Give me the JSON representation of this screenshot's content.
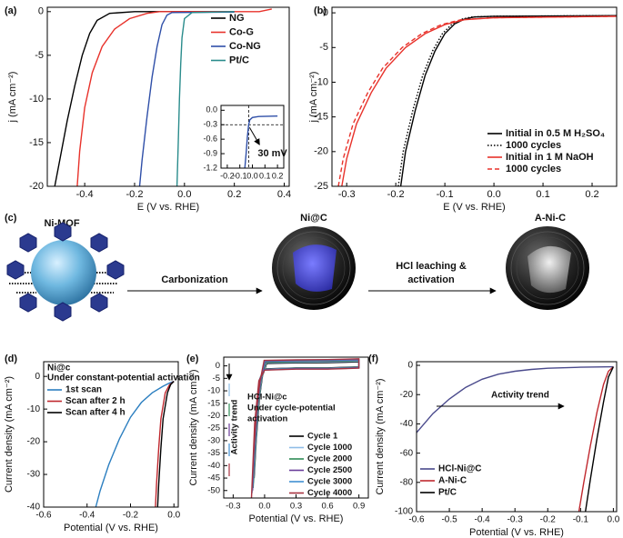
{
  "chart_data": [
    {
      "type": "line",
      "label": "(a)",
      "x_label": "E (V vs. RHE)",
      "y_label": "j (mA cm⁻²)",
      "xlim": [
        -0.55,
        0.42
      ],
      "ylim": [
        -20,
        0.5
      ],
      "xticks": [
        -0.4,
        -0.2,
        {
          "value": 0,
          "label": "0.0"
        },
        0.2,
        0.4
      ],
      "yticks": [
        0,
        -5,
        -10,
        -15,
        -20
      ],
      "series": [
        {
          "name": "NG",
          "color": "#000000",
          "x": [
            -0.52,
            -0.5,
            -0.47,
            -0.44,
            -0.41,
            -0.38,
            -0.35,
            -0.3,
            -0.2,
            0.2
          ],
          "values": [
            -20,
            -17,
            -12.5,
            -8.5,
            -5,
            -2.5,
            -1,
            -0.2,
            0,
            0
          ]
        },
        {
          "name": "Co-G",
          "color": "#e8322b",
          "x": [
            -0.43,
            -0.42,
            -0.4,
            -0.37,
            -0.33,
            -0.28,
            -0.22,
            -0.15,
            -0.1,
            0.3,
            0.35
          ],
          "values": [
            -20,
            -16,
            -11,
            -7,
            -4,
            -2,
            -0.8,
            -0.2,
            0,
            0,
            0.3
          ]
        },
        {
          "name": "Co-NG",
          "color": "#2f4fa8",
          "x": [
            -0.18,
            -0.17,
            -0.15,
            -0.13,
            -0.11,
            -0.09,
            -0.07,
            -0.05,
            0.2
          ],
          "values": [
            -20,
            -17,
            -12,
            -7.5,
            -4,
            -1.5,
            -0.4,
            -0.1,
            -0.05
          ]
        },
        {
          "name": "Pt/C",
          "color": "#2a8c8c",
          "x": [
            -0.03,
            -0.025,
            -0.02,
            -0.015,
            -0.01,
            0,
            0.03,
            0.2
          ],
          "values": [
            -20,
            -15,
            -10,
            -6,
            -3,
            -0.8,
            -0.1,
            0
          ]
        }
      ]
    },
    {
      "type": "line",
      "inset": true,
      "xlim": [
        -0.25,
        0.25
      ],
      "ylim": [
        -1.2,
        0.1
      ],
      "xticks": [
        -0.2,
        -0.1,
        {
          "value": 0,
          "label": "0.0"
        },
        0.1,
        0.2
      ],
      "yticks": [
        {
          "value": 0,
          "label": "0.0"
        },
        -0.3,
        -0.6,
        -0.9,
        -1.2
      ],
      "reference_lines": {
        "x": -0.03,
        "y": -0.3
      },
      "annotations": [
        "30 mV"
      ],
      "series": [
        {
          "color": "#2f4fa8",
          "x": [
            -0.06,
            -0.05,
            -0.04,
            -0.03,
            -0.02,
            0,
            0.05,
            0.2
          ],
          "values": [
            -1.2,
            -0.9,
            -0.55,
            -0.3,
            -0.2,
            -0.15,
            -0.13,
            -0.12
          ]
        }
      ]
    },
    {
      "type": "line",
      "label": "(b)",
      "x_label": "E (V vs. RHE)",
      "y_label": "j (mA cm⁻²)",
      "xlim": [
        -0.33,
        0.25
      ],
      "ylim": [
        -25,
        0.8
      ],
      "xticks": [
        -0.3,
        -0.2,
        -0.1,
        {
          "value": 0,
          "label": "0.0"
        },
        0.1,
        0.2
      ],
      "yticks": [
        0,
        -5,
        -10,
        -15,
        -20,
        -25
      ],
      "series": [
        {
          "name": "Initial in 0.5 M H₂SO₄",
          "color": "#000000",
          "x": [
            -0.19,
            -0.18,
            -0.16,
            -0.14,
            -0.12,
            -0.1,
            -0.08,
            -0.06,
            -0.04,
            0,
            0.25
          ],
          "values": [
            -25,
            -20,
            -14,
            -9,
            -5.5,
            -3,
            -1.6,
            -0.9,
            -0.6,
            -0.5,
            -0.4
          ]
        },
        {
          "name": "1000 cycles",
          "color": "#000000",
          "dash": "dotted",
          "x": [
            -0.195,
            -0.185,
            -0.165,
            -0.145,
            -0.125,
            -0.105,
            -0.085,
            -0.065,
            -0.045,
            0,
            0.25
          ],
          "values": [
            -25,
            -20,
            -14,
            -9,
            -5.5,
            -3,
            -1.6,
            -0.9,
            -0.6,
            -0.5,
            -0.4
          ]
        },
        {
          "name": "Initial in 1 M NaOH",
          "color": "#e8322b",
          "x": [
            -0.31,
            -0.3,
            -0.28,
            -0.25,
            -0.22,
            -0.18,
            -0.14,
            -0.1,
            -0.06,
            0,
            0.25
          ],
          "values": [
            -25,
            -21,
            -16,
            -11.5,
            -8,
            -5,
            -3,
            -1.7,
            -1,
            -0.7,
            -0.5
          ]
        },
        {
          "name": "1000 cycles",
          "color": "#e8322b",
          "dash": "dashed",
          "x": [
            -0.317,
            -0.307,
            -0.287,
            -0.257,
            -0.227,
            -0.187,
            -0.147,
            -0.107,
            -0.067,
            0,
            0.25
          ],
          "values": [
            -25,
            -21,
            -16,
            -11.5,
            -8,
            -5,
            -3,
            -1.7,
            -1,
            -0.7,
            -0.5
          ]
        }
      ]
    },
    {
      "type": "line",
      "label": "(d)",
      "x_label": "Potential (V vs. RHE)",
      "y_label": "Current density (mA cm⁻²)",
      "xlim": [
        -0.6,
        0.02
      ],
      "ylim": [
        -40,
        4.5
      ],
      "xticks": [
        -0.6,
        -0.4,
        -0.2,
        {
          "value": 0,
          "label": "0.0"
        }
      ],
      "yticks": [
        0,
        -10,
        -20,
        -30,
        -40
      ],
      "annotations": [
        "Ni@c",
        "Under constant-potential activation"
      ],
      "series": [
        {
          "name": "1st scan",
          "color": "#2c7fc0",
          "x": [
            -0.36,
            -0.34,
            -0.3,
            -0.25,
            -0.2,
            -0.15,
            -0.1,
            -0.05,
            -0.02,
            0
          ],
          "values": [
            -40,
            -35,
            -27,
            -19,
            -12.5,
            -8,
            -5,
            -3,
            -2,
            -1.5
          ]
        },
        {
          "name": "Scan after 2 h",
          "color": "#c0282e",
          "x": [
            -0.085,
            -0.08,
            -0.07,
            -0.06,
            -0.04,
            -0.02,
            0
          ],
          "values": [
            -40,
            -33,
            -22,
            -13,
            -5,
            -2.5,
            -1.5
          ]
        },
        {
          "name": "Scan after 4 h",
          "color": "#000000",
          "x": [
            -0.075,
            -0.07,
            -0.06,
            -0.05,
            -0.03,
            -0.015,
            0
          ],
          "values": [
            -40,
            -33,
            -22,
            -13,
            -5,
            -2.5,
            -1.5
          ]
        }
      ]
    },
    {
      "type": "line",
      "label": "(e)",
      "x_label": "Potential (V vs. RHE)",
      "y_label": "Current density (mA cm⁻²)",
      "xlim": [
        -0.39,
        0.99
      ],
      "ylim": [
        -53,
        3.5
      ],
      "xticks": [
        -0.3,
        {
          "value": 0,
          "label": "0.0"
        },
        0.3,
        0.6,
        0.9
      ],
      "yticks": [
        0,
        -5,
        -10,
        -15,
        -20,
        -25,
        -30,
        -35,
        -40,
        -45,
        -50
      ],
      "annotations": [
        "HCl-Ni@c",
        "Under cycle-potential",
        "activation",
        "Activity trend"
      ],
      "series": [
        {
          "name": "Cycle 1",
          "color": "#000000",
          "x": [
            -0.1,
            -0.08,
            -0.05,
            -0.02,
            0.02,
            0.3,
            0.6,
            0.9,
            0.9,
            0.6,
            0.3,
            0,
            -0.03,
            -0.07,
            -0.1
          ],
          "values": [
            -45,
            -30,
            -13,
            -4,
            1,
            1.2,
            1.3,
            1.6,
            -0.4,
            -0.8,
            -0.8,
            -1.2,
            -3.5,
            -18,
            -45
          ]
        },
        {
          "name": "Cycle 1000",
          "color": "#8fbde6",
          "x": [
            -0.105,
            -0.085,
            -0.055,
            -0.025,
            0.015,
            0.3,
            0.6,
            0.9,
            0.9,
            0.6,
            0.3,
            0,
            -0.035,
            -0.075,
            -0.105
          ],
          "values": [
            -47,
            -32,
            -14,
            -4.5,
            1.3,
            1.5,
            1.6,
            1.9,
            -0.5,
            -0.9,
            -0.9,
            -1.3,
            -4,
            -19,
            -47
          ]
        },
        {
          "name": "Cycle 2000",
          "color": "#2e8b57",
          "x": [
            -0.11,
            -0.09,
            -0.06,
            -0.03,
            0.01,
            0.3,
            0.6,
            0.9,
            0.9,
            0.6,
            0.3,
            0,
            -0.04,
            -0.08,
            -0.11
          ],
          "values": [
            -49,
            -33,
            -15,
            -5,
            1.5,
            1.8,
            1.9,
            2.2,
            -0.6,
            -1,
            -1,
            -1.4,
            -4.5,
            -20,
            -49
          ]
        },
        {
          "name": "Cycle 2500",
          "color": "#6a3d9a",
          "x": [
            -0.115,
            -0.095,
            -0.065,
            -0.035,
            0.005,
            0.3,
            0.6,
            0.9,
            0.9,
            0.6,
            0.3,
            0,
            -0.045,
            -0.085,
            -0.115
          ],
          "values": [
            -50,
            -34,
            -15.5,
            -5.5,
            1.8,
            2,
            2.1,
            2.4,
            -0.7,
            -1.1,
            -1.1,
            -1.5,
            -5,
            -21,
            -50
          ]
        },
        {
          "name": "Cycle 3000",
          "color": "#3f8fd2",
          "x": [
            -0.12,
            -0.1,
            -0.07,
            -0.04,
            0,
            0.3,
            0.6,
            0.9,
            0.9,
            0.6,
            0.3,
            0,
            -0.05,
            -0.09,
            -0.12
          ],
          "values": [
            -51,
            -35,
            -16,
            -6,
            2,
            2.2,
            2.3,
            2.6,
            -0.8,
            -1.2,
            -1.2,
            -1.6,
            -5.5,
            -22,
            -51
          ]
        },
        {
          "name": "Cycle 4000",
          "color": "#a83240",
          "x": [
            -0.125,
            -0.105,
            -0.075,
            -0.045,
            -0.005,
            0.3,
            0.6,
            0.9,
            0.9,
            0.6,
            0.3,
            0,
            -0.055,
            -0.095,
            -0.125
          ],
          "values": [
            -53,
            -36,
            -17,
            -6.5,
            2.2,
            2.4,
            2.5,
            2.8,
            -0.9,
            -1.3,
            -1.3,
            -1.7,
            -6,
            -23,
            -53
          ]
        }
      ]
    },
    {
      "type": "line",
      "label": "(f)",
      "x_label": "Potential (V vs. RHE)",
      "y_label": "Current density (mA cm⁻²)",
      "xlim": [
        -0.6,
        0.01
      ],
      "ylim": [
        -100,
        2.5
      ],
      "xticks": [
        -0.6,
        -0.5,
        -0.4,
        -0.3,
        -0.2,
        -0.1,
        {
          "value": 0,
          "label": "0.0"
        }
      ],
      "yticks": [
        0,
        -20,
        -40,
        -60,
        -80,
        -100
      ],
      "annotations": [
        "Activity trend"
      ],
      "series": [
        {
          "name": "HCl-Ni@C",
          "color": "#4a4a8c",
          "x": [
            -0.6,
            -0.55,
            -0.5,
            -0.45,
            -0.4,
            -0.35,
            -0.3,
            -0.25,
            -0.2,
            -0.1,
            0
          ],
          "values": [
            -46,
            -33,
            -23,
            -15,
            -9.5,
            -6,
            -4,
            -2.8,
            -2,
            -1.3,
            -1
          ]
        },
        {
          "name": "A-Ni-C",
          "color": "#c0282e",
          "x": [
            -0.105,
            -0.09,
            -0.07,
            -0.05,
            -0.03,
            -0.015,
            0
          ],
          "values": [
            -100,
            -80,
            -55,
            -32,
            -13,
            -4,
            -1
          ]
        },
        {
          "name": "Pt/C",
          "color": "#000000",
          "x": [
            -0.085,
            -0.07,
            -0.05,
            -0.03,
            -0.015,
            0
          ],
          "values": [
            -100,
            -78,
            -50,
            -25,
            -8,
            -1
          ]
        }
      ]
    }
  ],
  "scheme": {
    "label": "(c)",
    "stages": [
      "Ni-MOF",
      "Ni@C",
      "A-Ni-C"
    ],
    "steps": [
      [
        "Carbonization"
      ],
      [
        "HCl leaching &",
        "activation"
      ]
    ]
  }
}
